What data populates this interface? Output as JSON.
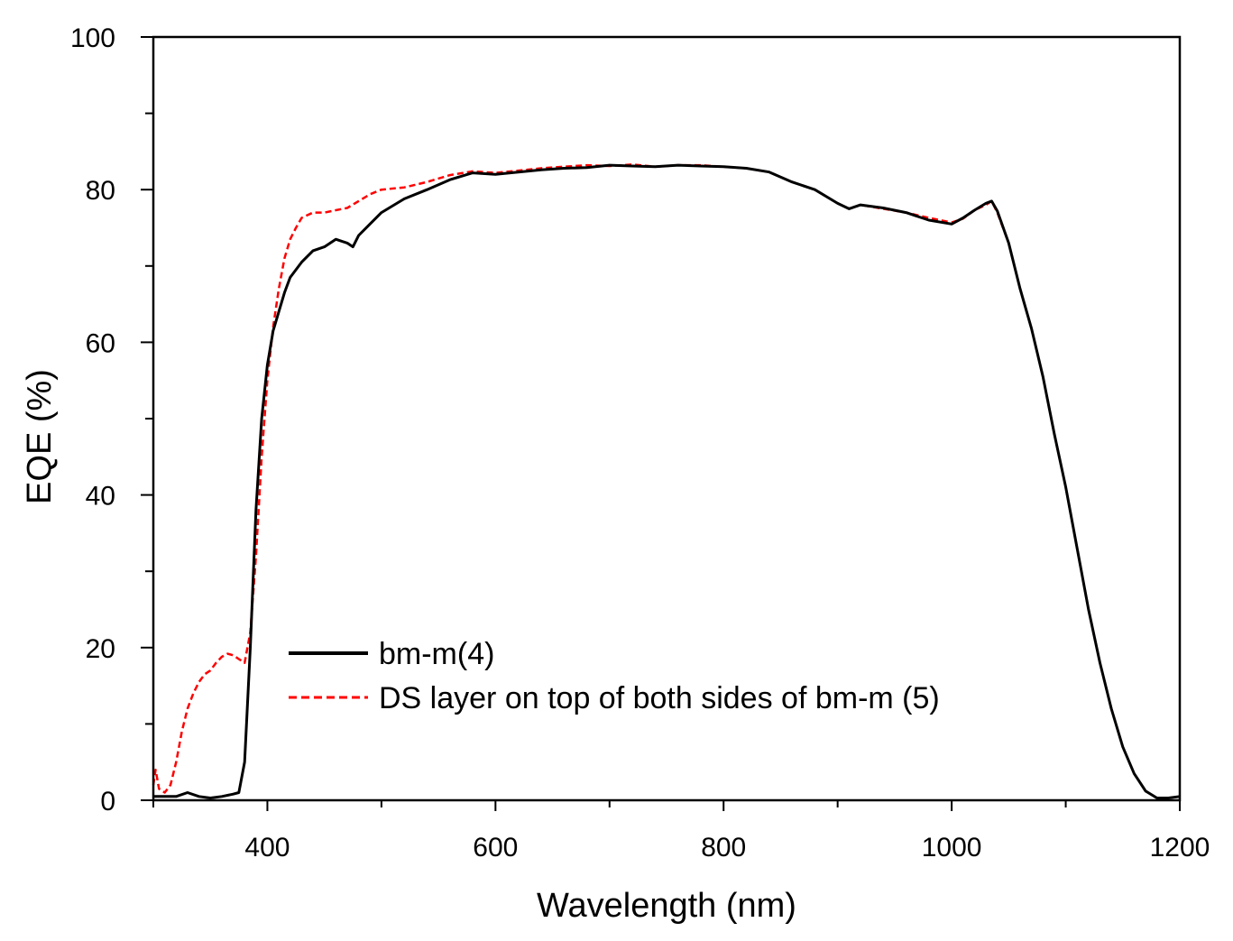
{
  "chart_data": {
    "type": "line",
    "title": "",
    "xlabel": "Wavelength (nm)",
    "ylabel": "EQE (%)",
    "xlim": [
      300,
      1200
    ],
    "ylim": [
      0,
      100
    ],
    "xticks": [
      400,
      600,
      800,
      1000,
      1200
    ],
    "yticks": [
      0,
      20,
      40,
      60,
      80,
      100
    ],
    "grid": false,
    "legend_position": "lower-left",
    "series": [
      {
        "name": "bm-m(4)",
        "color": "#000000",
        "dash": "solid",
        "x": [
          300,
          320,
          330,
          340,
          350,
          360,
          370,
          375,
          380,
          385,
          390,
          395,
          400,
          405,
          410,
          415,
          420,
          430,
          440,
          450,
          460,
          470,
          475,
          480,
          490,
          500,
          520,
          540,
          560,
          580,
          600,
          620,
          640,
          660,
          680,
          700,
          720,
          740,
          760,
          780,
          800,
          820,
          840,
          860,
          880,
          900,
          910,
          920,
          940,
          960,
          980,
          1000,
          1010,
          1020,
          1030,
          1035,
          1040,
          1050,
          1060,
          1070,
          1080,
          1090,
          1100,
          1110,
          1120,
          1130,
          1140,
          1150,
          1160,
          1170,
          1180,
          1190,
          1200
        ],
        "y": [
          0.5,
          0.5,
          1,
          0.5,
          0.3,
          0.5,
          0.8,
          1,
          5,
          20,
          38,
          50,
          57,
          61.5,
          64,
          66.5,
          68.5,
          70.5,
          72,
          72.5,
          73.5,
          73,
          72.5,
          74,
          75.5,
          77,
          78.8,
          80,
          81.3,
          82.2,
          82,
          82.3,
          82.6,
          82.8,
          82.9,
          83.2,
          83.1,
          83,
          83.2,
          83.1,
          83,
          82.8,
          82.3,
          81,
          80,
          78.2,
          77.5,
          78,
          77.6,
          77,
          76,
          75.5,
          76.3,
          77.3,
          78.2,
          78.5,
          77.2,
          73,
          67,
          61.8,
          55.5,
          48,
          41,
          33,
          25,
          18,
          12,
          7,
          3.5,
          1.2,
          0.3,
          0.3,
          0.5
        ]
      },
      {
        "name": "DS layer on top of both sides of bm-m (5)",
        "color": "#ff0000",
        "dash": "dashed",
        "x": [
          300,
          302,
          305,
          310,
          315,
          320,
          325,
          330,
          335,
          340,
          345,
          350,
          355,
          360,
          365,
          370,
          375,
          380,
          385,
          390,
          395,
          400,
          405,
          410,
          415,
          420,
          425,
          430,
          440,
          450,
          460,
          470,
          480,
          490,
          500,
          520,
          540,
          560,
          580,
          600,
          620,
          640,
          660,
          680,
          700,
          720,
          740,
          760,
          780,
          800,
          820,
          840,
          860,
          880,
          900,
          910,
          920,
          940,
          960,
          980,
          1000,
          1010,
          1020,
          1030,
          1035,
          1040,
          1050,
          1060,
          1070,
          1080,
          1090,
          1100,
          1110,
          1120,
          1130,
          1140,
          1150,
          1160,
          1170,
          1180,
          1190,
          1200
        ],
        "y": [
          2,
          4,
          1.5,
          1,
          2,
          5,
          9,
          12,
          14,
          15.5,
          16.5,
          17,
          18,
          18.8,
          19.2,
          19,
          18.5,
          18,
          22,
          32,
          45,
          55,
          62,
          67,
          71,
          73.5,
          75,
          76.3,
          77,
          77,
          77.3,
          77.6,
          78.5,
          79.4,
          80,
          80.3,
          81,
          81.9,
          82.4,
          82.2,
          82.5,
          82.8,
          83,
          83.2,
          83.1,
          83.3,
          83,
          83.2,
          83.2,
          83,
          82.8,
          82.3,
          81,
          80,
          78.2,
          77.5,
          78,
          77.5,
          77,
          76.3,
          75.7,
          76.2,
          77.3,
          78,
          78.5,
          77,
          73,
          67,
          61.8,
          55.5,
          48,
          41,
          33,
          25,
          18,
          12,
          7,
          3.5,
          1.2,
          0.3,
          0.3,
          0.5
        ]
      }
    ]
  }
}
